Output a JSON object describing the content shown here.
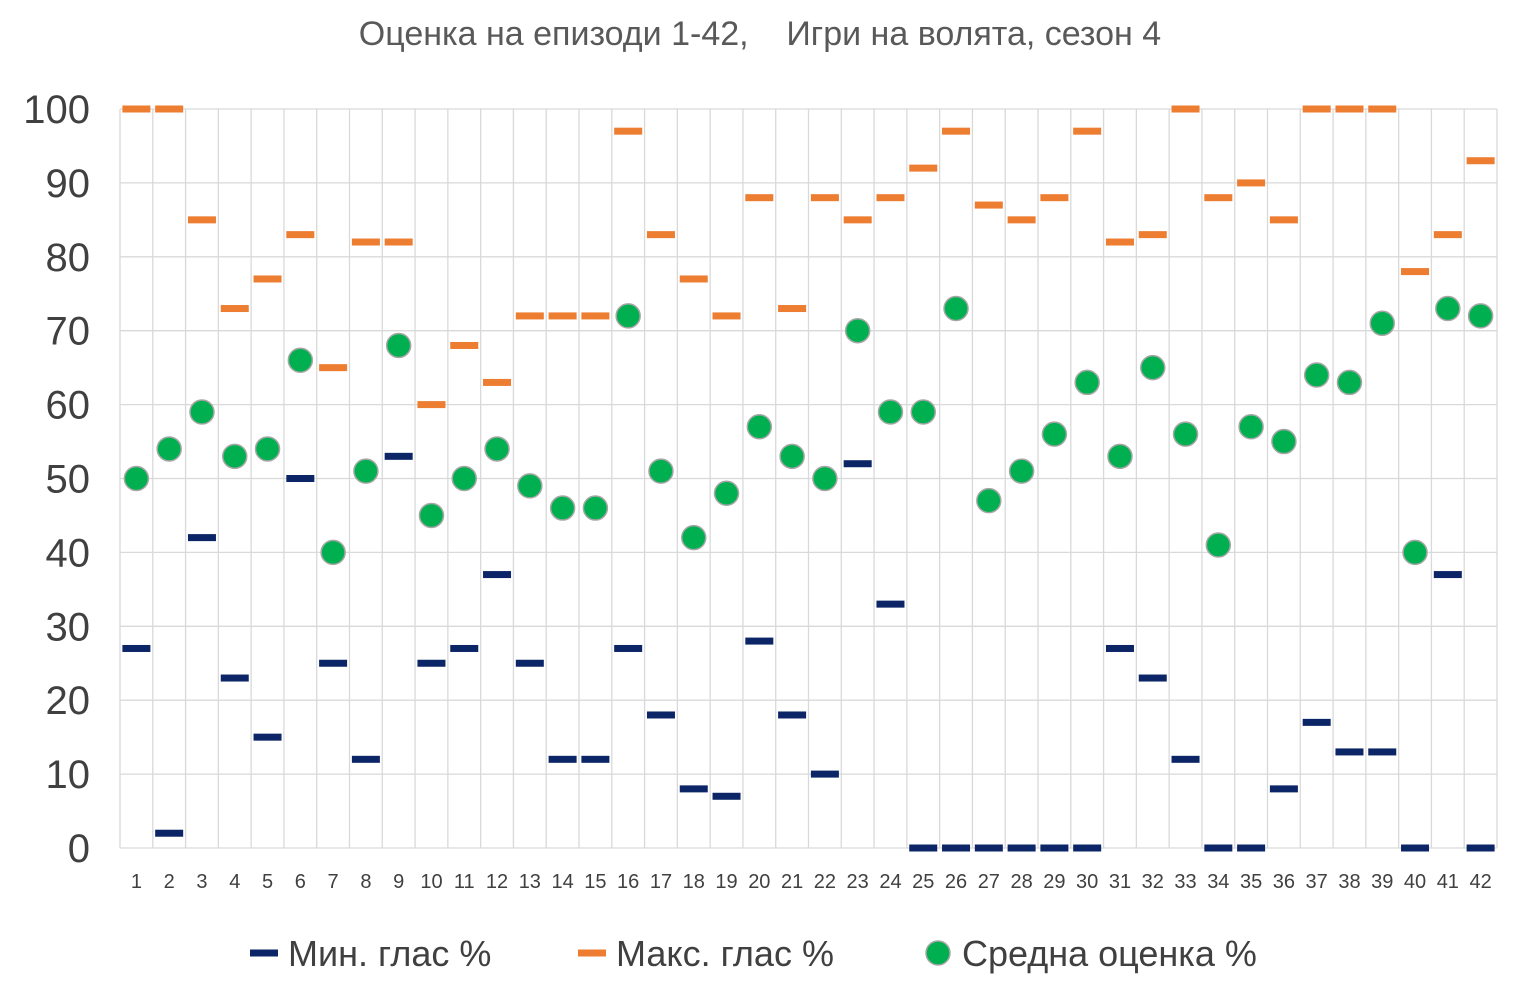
{
  "chart_data": {
    "type": "scatter",
    "title": "Оценка на епизоди 1-42,    Игри на волята, сезон 4",
    "xlabel": "",
    "ylabel": "",
    "ylim": [
      0,
      100
    ],
    "ytick_step": 10,
    "yticks": [
      "0",
      "10",
      "20",
      "30",
      "40",
      "50",
      "60",
      "70",
      "80",
      "90",
      "100"
    ],
    "grid": true,
    "legend_position": "bottom",
    "categories": [
      "1",
      "2",
      "3",
      "4",
      "5",
      "6",
      "7",
      "8",
      "9",
      "10",
      "11",
      "12",
      "13",
      "14",
      "15",
      "16",
      "17",
      "18",
      "19",
      "20",
      "21",
      "22",
      "23",
      "24",
      "25",
      "26",
      "27",
      "28",
      "29",
      "30",
      "31",
      "32",
      "33",
      "34",
      "35",
      "36",
      "37",
      "38",
      "39",
      "40",
      "41",
      "42"
    ],
    "series": [
      {
        "name": "Мин. глас %",
        "marker": "dash",
        "color": "#0b2566",
        "values": [
          27,
          2,
          42,
          23,
          15,
          50,
          25,
          12,
          53,
          25,
          27,
          37,
          25,
          12,
          12,
          27,
          18,
          8,
          7,
          28,
          18,
          10,
          52,
          33,
          0,
          0,
          0,
          0,
          0,
          0,
          27,
          23,
          12,
          0,
          0,
          8,
          17,
          13,
          13,
          0,
          37,
          0
        ]
      },
      {
        "name": "Макс. глас %",
        "marker": "dash",
        "color": "#ed7d31",
        "values": [
          100,
          100,
          85,
          73,
          77,
          83,
          65,
          82,
          82,
          60,
          68,
          63,
          72,
          72,
          72,
          97,
          83,
          77,
          72,
          88,
          73,
          88,
          85,
          88,
          92,
          97,
          87,
          85,
          88,
          97,
          82,
          83,
          100,
          88,
          90,
          85,
          100,
          100,
          100,
          78,
          83,
          93
        ]
      },
      {
        "name": "Средна оценка %",
        "marker": "circle",
        "color": "#00b050",
        "values": [
          50,
          54,
          59,
          53,
          54,
          66,
          40,
          51,
          68,
          45,
          50,
          54,
          49,
          46,
          46,
          72,
          51,
          42,
          48,
          57,
          53,
          50,
          70,
          59,
          59,
          73,
          47,
          51,
          56,
          63,
          53,
          65,
          56,
          41,
          57,
          55,
          64,
          63,
          71,
          40,
          73,
          72
        ]
      }
    ]
  }
}
